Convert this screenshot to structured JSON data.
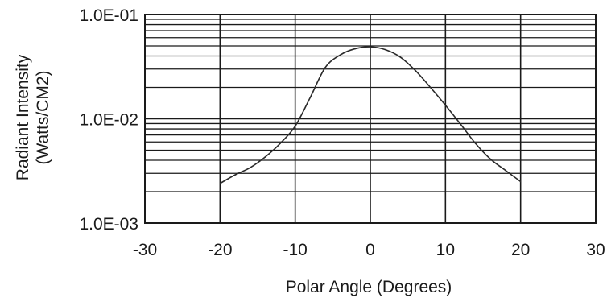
{
  "chart_data": {
    "type": "line",
    "title": "",
    "xlabel": "Polar Angle (Degrees)",
    "ylabel_lines": [
      "Radiant Intensity",
      "(Watts/CM2)"
    ],
    "xlim": [
      -30,
      30
    ],
    "ylim": [
      0.001,
      0.1
    ],
    "y_scale": "log",
    "grid": true,
    "x_ticks": [
      -30,
      -20,
      -10,
      0,
      10,
      20,
      30
    ],
    "x_tick_labels": [
      "-30",
      "-20",
      "-10",
      "0",
      "10",
      "20",
      "30"
    ],
    "y_ticks": [
      0.001,
      0.01,
      0.1
    ],
    "y_tick_labels": [
      "1.0E-03",
      "1.0E-02",
      "1.0E-01"
    ],
    "series": [
      {
        "x": [
          -20,
          -18,
          -16,
          -14,
          -12,
          -10,
          -8,
          -6,
          -4,
          -2,
          0,
          2,
          4,
          6,
          8,
          10,
          12,
          14,
          16,
          18,
          20
        ],
        "y": [
          0.0024,
          0.0029,
          0.0034,
          0.0043,
          0.0058,
          0.0085,
          0.016,
          0.031,
          0.041,
          0.047,
          0.049,
          0.046,
          0.039,
          0.029,
          0.02,
          0.0135,
          0.0089,
          0.0058,
          0.0041,
          0.0032,
          0.0025
        ]
      }
    ]
  }
}
